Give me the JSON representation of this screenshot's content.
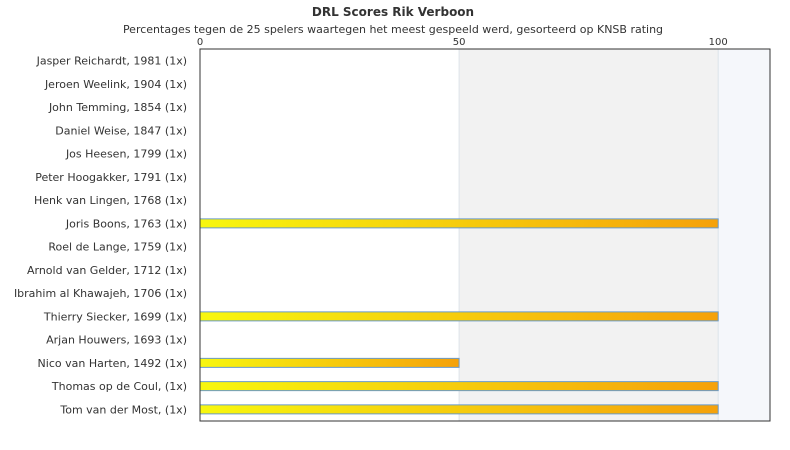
{
  "chart_data": {
    "type": "bar",
    "orientation": "horizontal",
    "title": "DRL Scores Rik Verboon",
    "subtitle": "Percentages tegen de 25 spelers waartegen het meest gespeeld werd, gesorteerd op KNSB rating",
    "categories": [
      "Jasper Reichardt, 1981 (1x)",
      "Jeroen Weelink, 1904 (1x)",
      "John Temming, 1854 (1x)",
      "Daniel Weise, 1847 (1x)",
      "Jos Heesen, 1799 (1x)",
      "Peter Hoogakker, 1791 (1x)",
      "Henk van Lingen, 1768 (1x)",
      "Joris Boons, 1763 (1x)",
      "Roel de Lange, 1759 (1x)",
      "Arnold van Gelder, 1712 (1x)",
      "Ibrahim al Khawajeh, 1706 (1x)",
      "Thierry Siecker, 1699 (1x)",
      "Arjan Houwers, 1693 (1x)",
      "Nico van Harten, 1492 (1x)",
      "Thomas op de Coul,  (1x)",
      "Tom van der Most,  (1x)"
    ],
    "values": [
      0,
      0,
      0,
      0,
      0,
      0,
      0,
      100,
      0,
      0,
      0,
      100,
      0,
      50,
      100,
      100
    ],
    "xlim": [
      0,
      110
    ],
    "ticks": [
      0,
      50,
      100
    ],
    "tick_labels": [
      "0",
      "50",
      "100"
    ],
    "axis_position": "top",
    "colors": {
      "bar_start": "#f7f70f",
      "bar_end": "#f5a10a",
      "bar_border": "#6a9ac8",
      "band_alt": "#f2f2f2",
      "band_last": "#f5f7fb",
      "grid": "#dde3ea",
      "frame": "#333333"
    }
  }
}
